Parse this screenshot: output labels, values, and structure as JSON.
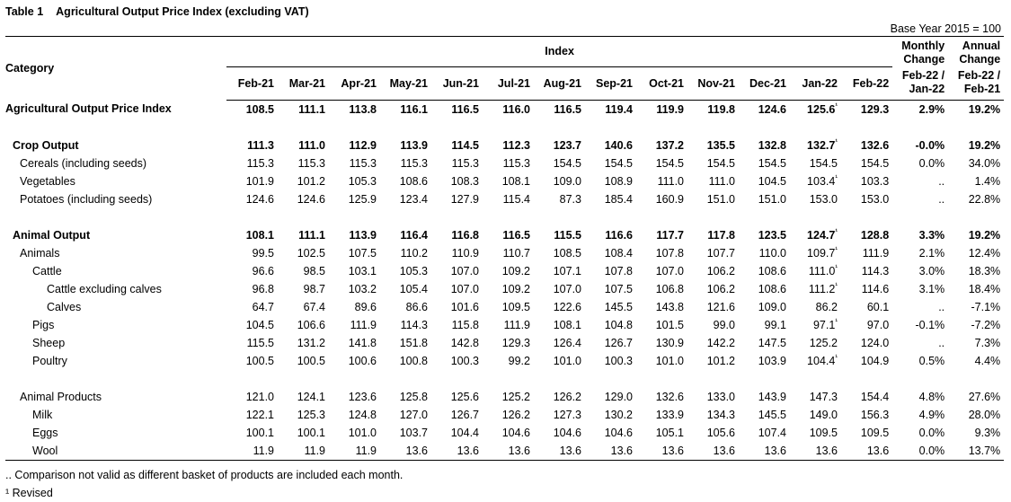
{
  "title": {
    "number": "Table 1",
    "text": "Agricultural Output Price Index (excluding VAT)"
  },
  "base_year": "Base Year 2015 = 100",
  "header": {
    "category": "Category",
    "index": "Index",
    "monthly_change": "Monthly Change",
    "annual_change": "Annual Change",
    "months": [
      "Feb-21",
      "Mar-21",
      "Apr-21",
      "May-21",
      "Jun-21",
      "Jul-21",
      "Aug-21",
      "Sep-21",
      "Oct-21",
      "Nov-21",
      "Dec-21",
      "Jan-22",
      "Feb-22"
    ],
    "monthly_sub": "Feb-22 / Jan-22",
    "annual_sub": "Feb-22 / Feb-21"
  },
  "rows": [
    {
      "label": "Agricultural Output Price Index",
      "level": 0,
      "bold": true,
      "values": [
        "108.5",
        "111.1",
        "113.8",
        "116.1",
        "116.5",
        "116.0",
        "116.5",
        "119.4",
        "119.9",
        "119.8",
        "124.6",
        "125.6",
        "129.3"
      ],
      "revised": true,
      "monthly": "2.9%",
      "annual": "19.2%"
    },
    {
      "spacer": true
    },
    {
      "label": "Crop Output",
      "level": 1,
      "bold": true,
      "values": [
        "111.3",
        "111.0",
        "112.9",
        "113.9",
        "114.5",
        "112.3",
        "123.7",
        "140.6",
        "137.2",
        "135.5",
        "132.8",
        "132.7",
        "132.6"
      ],
      "revised": true,
      "monthly": "-0.0%",
      "annual": "19.2%"
    },
    {
      "label": "Cereals (including seeds)",
      "level": 2,
      "bold": false,
      "values": [
        "115.3",
        "115.3",
        "115.3",
        "115.3",
        "115.3",
        "115.3",
        "154.5",
        "154.5",
        "154.5",
        "154.5",
        "154.5",
        "154.5",
        "154.5"
      ],
      "revised": false,
      "monthly": "0.0%",
      "annual": "34.0%"
    },
    {
      "label": "Vegetables",
      "level": 2,
      "bold": false,
      "values": [
        "101.9",
        "101.2",
        "105.3",
        "108.6",
        "108.3",
        "108.1",
        "109.0",
        "108.9",
        "111.0",
        "111.0",
        "104.5",
        "103.4",
        "103.3"
      ],
      "revised": true,
      "monthly": "..",
      "annual": "1.4%"
    },
    {
      "label": "Potatoes (including seeds)",
      "level": 2,
      "bold": false,
      "values": [
        "124.6",
        "124.6",
        "125.9",
        "123.4",
        "127.9",
        "115.4",
        "87.3",
        "185.4",
        "160.9",
        "151.0",
        "151.0",
        "153.0",
        "153.0"
      ],
      "revised": false,
      "monthly": "..",
      "annual": "22.8%"
    },
    {
      "spacer": true
    },
    {
      "label": "Animal Output",
      "level": 1,
      "bold": true,
      "values": [
        "108.1",
        "111.1",
        "113.9",
        "116.4",
        "116.8",
        "116.5",
        "115.5",
        "116.6",
        "117.7",
        "117.8",
        "123.5",
        "124.7",
        "128.8"
      ],
      "revised": true,
      "monthly": "3.3%",
      "annual": "19.2%"
    },
    {
      "label": "Animals",
      "level": 2,
      "bold": false,
      "values": [
        "99.5",
        "102.5",
        "107.5",
        "110.2",
        "110.9",
        "110.7",
        "108.5",
        "108.4",
        "107.8",
        "107.7",
        "110.0",
        "109.7",
        "111.9"
      ],
      "revised": true,
      "monthly": "2.1%",
      "annual": "12.4%"
    },
    {
      "label": "Cattle",
      "level": 3,
      "bold": false,
      "values": [
        "96.6",
        "98.5",
        "103.1",
        "105.3",
        "107.0",
        "109.2",
        "107.1",
        "107.8",
        "107.0",
        "106.2",
        "108.6",
        "111.0",
        "114.3"
      ],
      "revised": true,
      "monthly": "3.0%",
      "annual": "18.3%"
    },
    {
      "label": "Cattle excluding calves",
      "level": 4,
      "bold": false,
      "values": [
        "96.8",
        "98.7",
        "103.2",
        "105.4",
        "107.0",
        "109.2",
        "107.0",
        "107.5",
        "106.8",
        "106.2",
        "108.6",
        "111.2",
        "114.6"
      ],
      "revised": true,
      "monthly": "3.1%",
      "annual": "18.4%"
    },
    {
      "label": "Calves",
      "level": 4,
      "bold": false,
      "values": [
        "64.7",
        "67.4",
        "89.6",
        "86.6",
        "101.6",
        "109.5",
        "122.6",
        "145.5",
        "143.8",
        "121.6",
        "109.0",
        "86.2",
        "60.1"
      ],
      "revised": false,
      "monthly": "..",
      "annual": "-7.1%"
    },
    {
      "label": "Pigs",
      "level": 3,
      "bold": false,
      "values": [
        "104.5",
        "106.6",
        "111.9",
        "114.3",
        "115.8",
        "111.9",
        "108.1",
        "104.8",
        "101.5",
        "99.0",
        "99.1",
        "97.1",
        "97.0"
      ],
      "revised": true,
      "monthly": "-0.1%",
      "annual": "-7.2%"
    },
    {
      "label": "Sheep",
      "level": 3,
      "bold": false,
      "values": [
        "115.5",
        "131.2",
        "141.8",
        "151.8",
        "142.8",
        "129.3",
        "126.4",
        "126.7",
        "130.9",
        "142.2",
        "147.5",
        "125.2",
        "124.0"
      ],
      "revised": false,
      "monthly": "..",
      "annual": "7.3%"
    },
    {
      "label": "Poultry",
      "level": 3,
      "bold": false,
      "values": [
        "100.5",
        "100.5",
        "100.6",
        "100.8",
        "100.3",
        "99.2",
        "101.0",
        "100.3",
        "101.0",
        "101.2",
        "103.9",
        "104.4",
        "104.9"
      ],
      "revised": true,
      "monthly": "0.5%",
      "annual": "4.4%"
    },
    {
      "spacer": true
    },
    {
      "label": "Animal Products",
      "level": 2,
      "bold": false,
      "values": [
        "121.0",
        "124.1",
        "123.6",
        "125.8",
        "125.6",
        "125.2",
        "126.2",
        "129.0",
        "132.6",
        "133.0",
        "143.9",
        "147.3",
        "154.4"
      ],
      "revised": false,
      "monthly": "4.8%",
      "annual": "27.6%"
    },
    {
      "label": "Milk",
      "level": 3,
      "bold": false,
      "values": [
        "122.1",
        "125.3",
        "124.8",
        "127.0",
        "126.7",
        "126.2",
        "127.3",
        "130.2",
        "133.9",
        "134.3",
        "145.5",
        "149.0",
        "156.3"
      ],
      "revised": false,
      "monthly": "4.9%",
      "annual": "28.0%"
    },
    {
      "label": "Eggs",
      "level": 3,
      "bold": false,
      "values": [
        "100.1",
        "100.1",
        "101.0",
        "103.7",
        "104.4",
        "104.6",
        "104.6",
        "104.6",
        "105.1",
        "105.6",
        "107.4",
        "109.5",
        "109.5"
      ],
      "revised": false,
      "monthly": "0.0%",
      "annual": "9.3%"
    },
    {
      "label": "Wool",
      "level": 3,
      "bold": false,
      "values": [
        "11.9",
        "11.9",
        "11.9",
        "13.6",
        "13.6",
        "13.6",
        "13.6",
        "13.6",
        "13.6",
        "13.6",
        "13.6",
        "13.6",
        "13.6"
      ],
      "revised": false,
      "monthly": "0.0%",
      "annual": "13.7%"
    }
  ],
  "revised_mark": "¹",
  "notes": [
    ".. Comparison not valid as different basket of products are included each month.",
    "¹ Revised"
  ]
}
